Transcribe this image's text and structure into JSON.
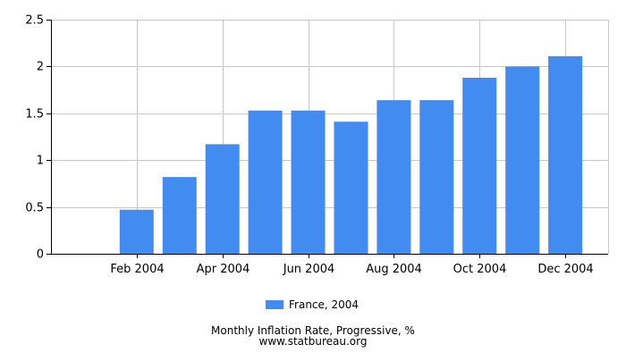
{
  "colors": {
    "bar": "#428BF0",
    "grid": "#c8c8c8",
    "axis": "#000000"
  },
  "chart_data": {
    "type": "bar",
    "categories": [
      "Jan 2004",
      "Feb 2004",
      "Mar 2004",
      "Apr 2004",
      "May 2004",
      "Jun 2004",
      "Jul 2004",
      "Aug 2004",
      "Sep 2004",
      "Oct 2004",
      "Nov 2004",
      "Dec 2004"
    ],
    "x_tick_labels": [
      "Feb 2004",
      "Apr 2004",
      "Jun 2004",
      "Aug 2004",
      "Oct 2004",
      "Dec 2004"
    ],
    "series": [
      {
        "name": "France, 2004",
        "values": [
          0,
          0.47,
          0.82,
          1.17,
          1.53,
          1.53,
          1.41,
          1.64,
          1.64,
          1.88,
          2.0,
          2.11
        ]
      }
    ],
    "ylim": [
      0,
      2.5
    ],
    "y_ticks": [
      0,
      0.5,
      1,
      1.5,
      2,
      2.5
    ],
    "y_tick_labels": [
      "0",
      "0.5",
      "1",
      "1.5",
      "2",
      "2.5"
    ],
    "grid": true,
    "legend_position": "bottom-center",
    "title": "Monthly Inflation Rate, Progressive, %",
    "source": "www.statbureau.org"
  }
}
